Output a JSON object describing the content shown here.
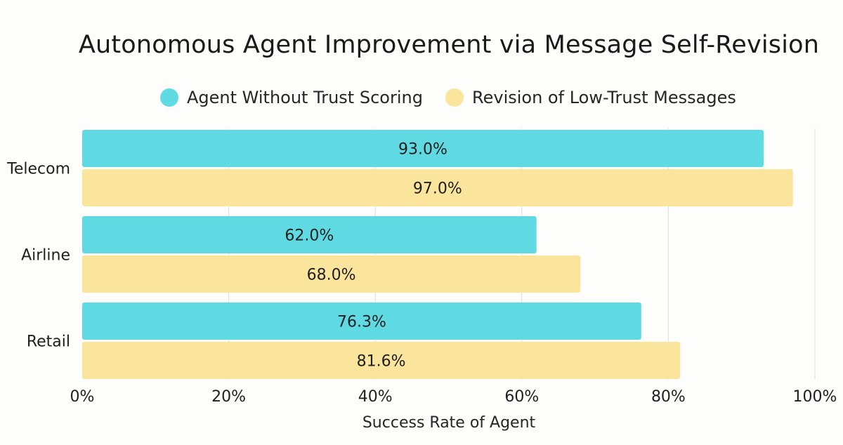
{
  "chart_data": {
    "type": "bar",
    "orientation": "horizontal",
    "title": "Autonomous Agent Improvement via Message Self-Revision",
    "xlabel": "Success Rate of Agent",
    "ylabel": "",
    "categories": [
      "Telecom",
      "Airline",
      "Retail"
    ],
    "series": [
      {
        "name": "Agent Without Trust Scoring",
        "color": "#5fd9e2",
        "values": [
          93.0,
          62.0,
          76.3
        ],
        "labels": [
          "93.0%",
          "62.0%",
          "76.3%"
        ]
      },
      {
        "name": "Revision of Low-Trust Messages",
        "color": "#fbe49c",
        "values": [
          97.0,
          68.0,
          81.6
        ],
        "labels": [
          "97.0%",
          "68.0%",
          "81.6%"
        ]
      }
    ],
    "xlim": [
      0,
      100
    ],
    "x_ticks": [
      0,
      20,
      40,
      60,
      80,
      100
    ],
    "x_tick_labels": [
      "0%",
      "20%",
      "40%",
      "60%",
      "80%",
      "100%"
    ],
    "grid": true,
    "legend_position": "top"
  }
}
